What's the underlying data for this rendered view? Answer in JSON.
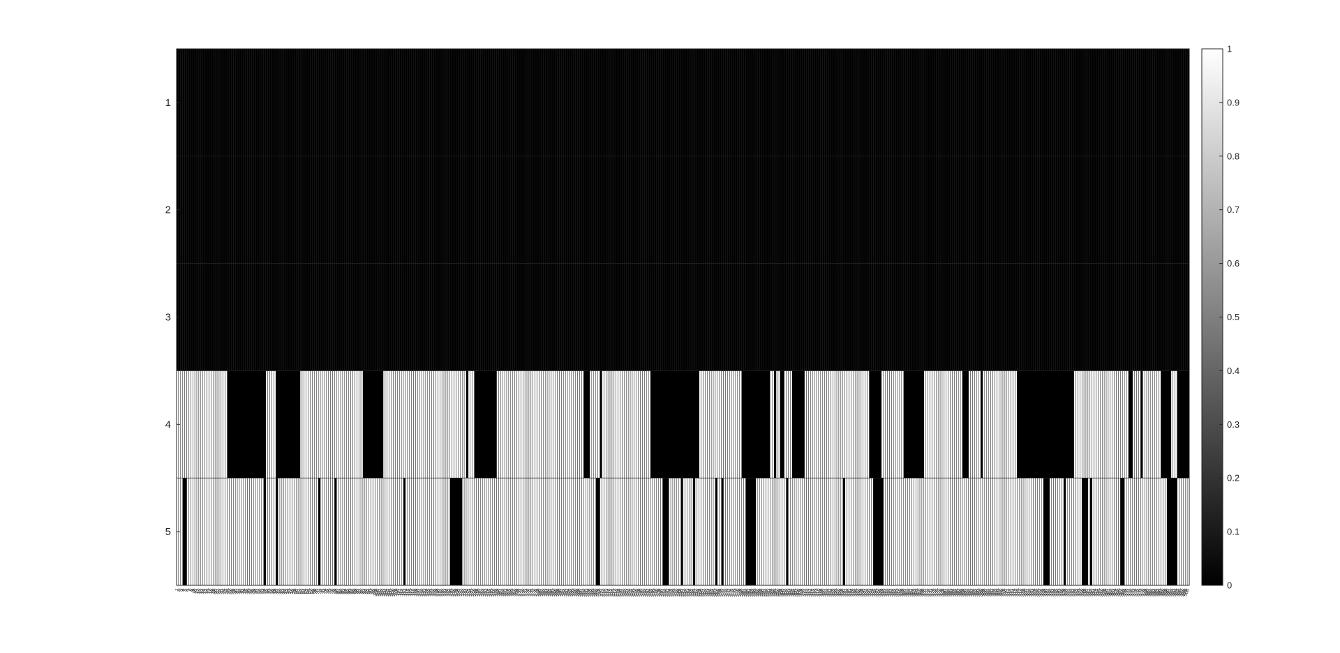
{
  "chart_data": {
    "type": "heatmap",
    "title": "",
    "xlabel": "",
    "ylabel": "",
    "rows": [
      "1",
      "2",
      "3",
      "4",
      "5"
    ],
    "num_columns": 500,
    "x_tick_labels_legible": false,
    "colormap": "gray",
    "color_low": "#000000",
    "color_high": "#ffffff",
    "clim": [
      0,
      1
    ],
    "colorbar": {
      "placement": "right",
      "ticks": [
        "0",
        "0.1",
        "0.2",
        "0.3",
        "0.4",
        "0.5",
        "0.6",
        "0.7",
        "0.8",
        "0.9",
        "1"
      ]
    },
    "row_values": {
      "1": "all 0",
      "2": "all 0",
      "3": "all 0"
    },
    "on_intervals_0_to_1": {
      "4": [
        [
          0.0,
          0.01
        ],
        [
          0.012,
          0.048
        ],
        [
          0.088,
          0.095
        ],
        [
          0.122,
          0.182
        ],
        [
          0.204,
          0.283
        ],
        [
          0.288,
          0.291
        ],
        [
          0.317,
          0.396
        ],
        [
          0.398,
          0.4
        ],
        [
          0.409,
          0.415
        ],
        [
          0.421,
          0.465
        ],
        [
          0.516,
          0.555
        ],
        [
          0.586,
          0.587
        ],
        [
          0.592,
          0.593
        ],
        [
          0.6,
          0.606
        ],
        [
          0.62,
          0.636
        ],
        [
          0.638,
          0.655
        ],
        [
          0.657,
          0.667
        ],
        [
          0.668,
          0.669
        ],
        [
          0.671,
          0.676
        ],
        [
          0.677,
          0.681
        ],
        [
          0.697,
          0.707
        ],
        [
          0.711,
          0.716
        ],
        [
          0.738,
          0.755
        ],
        [
          0.759,
          0.768
        ],
        [
          0.77,
          0.774
        ],
        [
          0.782,
          0.788
        ],
        [
          0.789,
          0.791
        ],
        [
          0.797,
          0.828
        ],
        [
          0.886,
          0.889
        ],
        [
          0.892,
          0.938
        ],
        [
          0.944,
          0.949
        ],
        [
          0.954,
          0.97
        ],
        [
          0.983,
          0.986
        ],
        [
          1.0,
          1.0
        ]
      ],
      "5": [
        [
          0.0,
          0.003
        ],
        [
          0.01,
          0.029
        ],
        [
          0.033,
          0.034
        ],
        [
          0.035,
          0.068
        ],
        [
          0.07,
          0.081
        ],
        [
          0.083,
          0.084
        ],
        [
          0.088,
          0.096
        ],
        [
          0.1,
          0.138
        ],
        [
          0.142,
          0.154
        ],
        [
          0.158,
          0.222
        ],
        [
          0.226,
          0.268
        ],
        [
          0.282,
          0.284
        ],
        [
          0.286,
          0.412
        ],
        [
          0.419,
          0.421
        ],
        [
          0.423,
          0.431
        ],
        [
          0.435,
          0.461
        ],
        [
          0.464,
          0.465
        ],
        [
          0.469,
          0.478
        ],
        [
          0.486,
          0.491
        ],
        [
          0.493,
          0.495
        ],
        [
          0.5,
          0.508
        ],
        [
          0.512,
          0.53
        ],
        [
          0.534,
          0.535
        ],
        [
          0.541,
          0.56
        ],
        [
          0.573,
          0.6
        ],
        [
          0.604,
          0.645
        ],
        [
          0.648,
          0.655
        ],
        [
          0.66,
          0.668
        ],
        [
          0.671,
          0.675
        ],
        [
          0.677,
          0.681
        ],
        [
          0.683,
          0.686
        ],
        [
          0.698,
          0.717
        ],
        [
          0.72,
          0.721
        ],
        [
          0.724,
          0.726
        ],
        [
          0.729,
          0.854
        ],
        [
          0.862,
          0.874
        ],
        [
          0.878,
          0.892
        ],
        [
          0.9,
          0.9
        ],
        [
          0.904,
          0.929
        ],
        [
          0.936,
          0.941
        ],
        [
          0.945,
          0.972
        ],
        [
          0.975,
          0.976
        ],
        [
          0.988,
          0.998
        ]
      ]
    }
  }
}
